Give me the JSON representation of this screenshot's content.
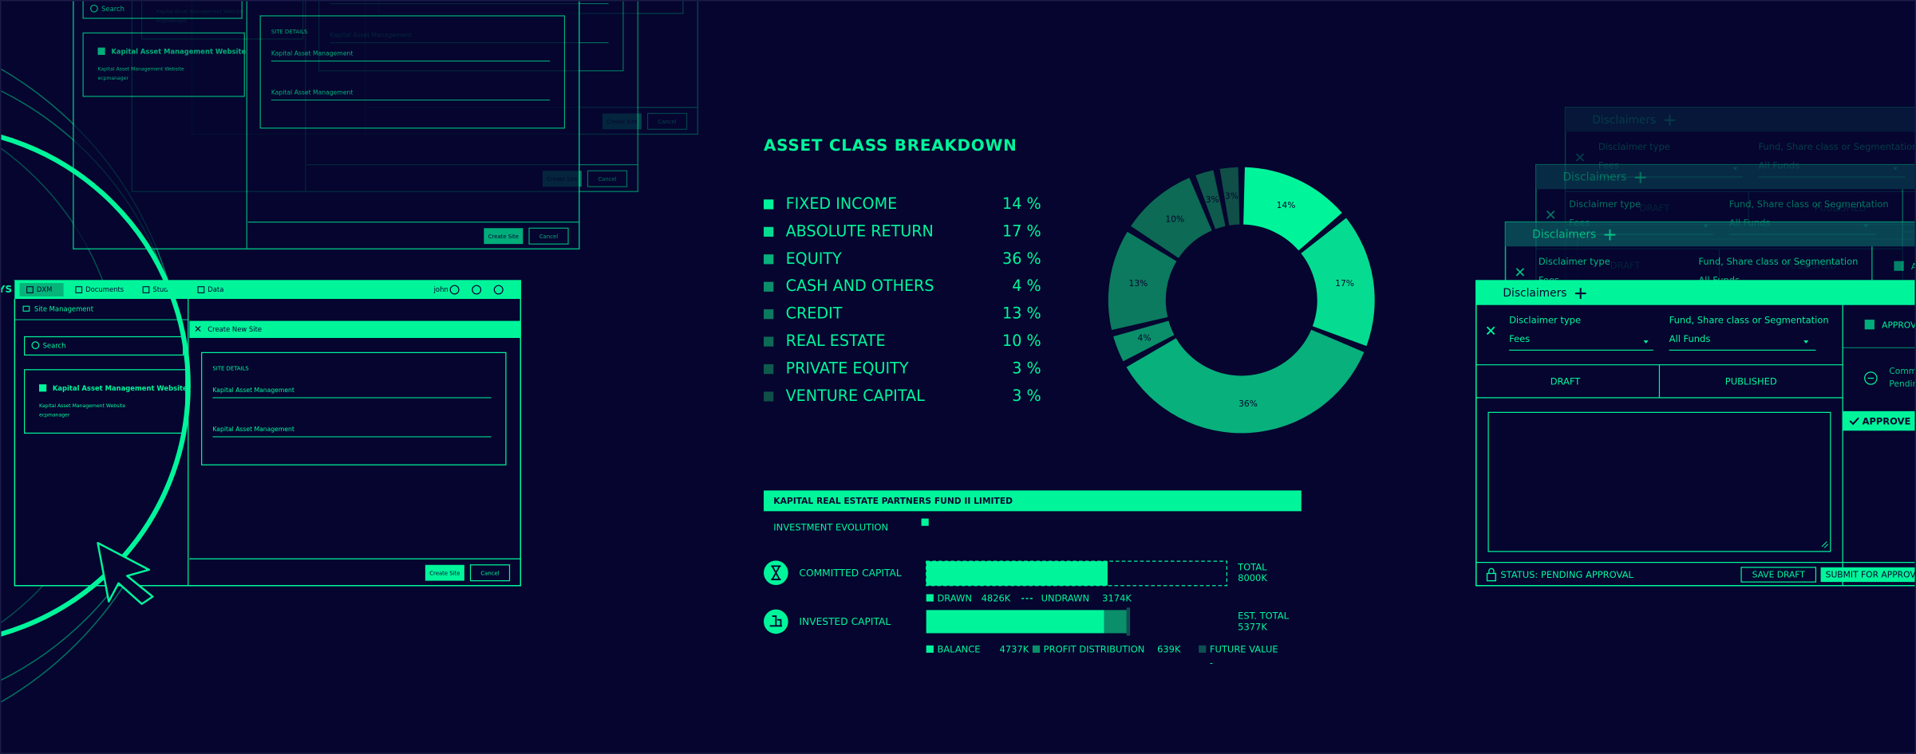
{
  "left_app": {
    "logo": "KURTOSYS",
    "nav": [
      "DXM",
      "Documents",
      "Studi",
      "Data"
    ],
    "user": "john",
    "sidebar_title": "Site Management",
    "search": "Search",
    "site_card": {
      "title": "Kapital Asset Management Website",
      "subtitle": "Kapital Asset Management Website",
      "url": "ecpmanager"
    },
    "dialog": {
      "title": "Create New Site",
      "section": "SITE DETAILS",
      "fields": [
        "Kapital Asset Management",
        "Kapital Asset Management"
      ],
      "buttons": [
        "Create Site",
        "Cancel"
      ]
    }
  },
  "asset_breakdown": {
    "title": "ASSET CLASS BREAKDOWN",
    "categories": [
      "FIXED INCOME",
      "ABSOLUTE RETURN",
      "EQUITY",
      "CASH AND OTHERS",
      "CREDIT",
      "REAL ESTATE",
      "PRIVATE EQUITY",
      "VENTURE CAPITAL"
    ],
    "values": [
      14,
      17,
      36,
      4,
      13,
      10,
      3,
      3
    ],
    "list_labels": [
      "14 %",
      "17 %",
      "36 %",
      "4 %",
      "13 %",
      "10 %",
      "3 %",
      "3 %"
    ],
    "donut_labels": [
      "14%",
      "17%",
      "36%",
      "4%",
      "13%",
      "10%",
      "3%",
      "3%"
    ],
    "colors": [
      "#00f59b",
      "#05dc91",
      "#08b07c",
      "#0b8f6a",
      "#0c7a5e",
      "#0d6a55",
      "#0e5a4c",
      "#0f4f47"
    ]
  },
  "fund": {
    "name": "KAPITAL REAL ESTATE PARTNERS FUND II LIMITED",
    "subtitle": "INVESTMENT EVOLUTION",
    "committed": {
      "label": "COMMITTED CAPITAL",
      "total_label": "TOTAL",
      "total": 8000,
      "total_text": "8000K",
      "segments": [
        {
          "name": "DRAWN",
          "value": 4826,
          "text": "4826K"
        },
        {
          "name": "UNDRAWN",
          "value": 3174,
          "text": "3174K"
        }
      ]
    },
    "invested": {
      "label": "INVESTED CAPITAL",
      "total_label": "EST. TOTAL",
      "total": 5377,
      "total_text": "5377K",
      "segments": [
        {
          "name": "BALANCE",
          "value": 4737,
          "text": "4737K"
        },
        {
          "name": "PROFIT DISTRIBUTION",
          "value": 639,
          "text": "639K"
        },
        {
          "name": "FUTURE VALUE",
          "value": null,
          "text": "-"
        }
      ]
    }
  },
  "disclaimers": {
    "title": "Disclaimers",
    "type_label": "Disclaimer type",
    "scope_label": "Fund, Share class or Segmentation",
    "type_value": "Fees",
    "scope_value": "All Funds",
    "tabs": [
      "DRAFT",
      "PUBLISHED"
    ],
    "status": "STATUS: PENDING APPROVAL",
    "buttons": [
      "SAVE DRAFT",
      "SUBMIT FOR APPROVAL"
    ],
    "side": {
      "tab": "APPROVALS",
      "comment": "Comment",
      "pending": "Pending",
      "action": "APPROVE"
    }
  }
}
